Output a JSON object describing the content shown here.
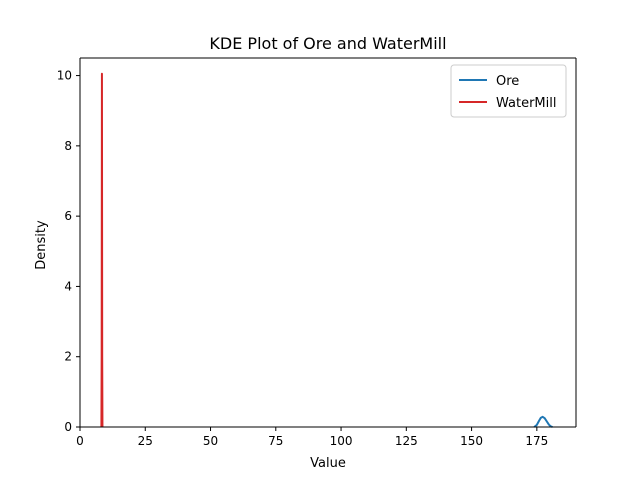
{
  "chart_data": {
    "type": "line",
    "title": "KDE Plot of Ore and WaterMill",
    "xlabel": "Value",
    "ylabel": "Density",
    "xlim": [
      0,
      190
    ],
    "ylim": [
      0,
      10.5
    ],
    "xticks": [
      0,
      25,
      50,
      75,
      100,
      125,
      150,
      175
    ],
    "yticks": [
      0,
      2,
      4,
      6,
      8,
      10
    ],
    "grid": false,
    "legend_position": "top-right",
    "series": [
      {
        "name": "Ore",
        "color": "#1f77b4",
        "x": [
          174.0,
          175.0,
          175.8,
          176.5,
          177.2,
          178.0,
          178.8,
          179.6,
          180.3,
          181.0
        ],
        "y": [
          0.0,
          0.06,
          0.17,
          0.26,
          0.29,
          0.25,
          0.16,
          0.07,
          0.02,
          0.0
        ]
      },
      {
        "name": "WaterMill",
        "color": "#d62728",
        "x": [
          8.2,
          8.3,
          8.4,
          8.5,
          8.6
        ],
        "y": [
          0.0,
          2.0,
          10.05,
          2.0,
          0.0
        ]
      }
    ]
  }
}
